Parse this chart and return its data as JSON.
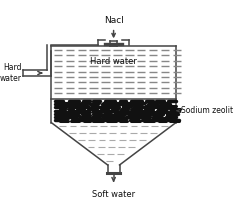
{
  "background_color": "#ffffff",
  "line_color": "#444444",
  "text_color": "#111111",
  "nacl_label": "Nacl",
  "hard_water_label": "Hard water",
  "hard_water_inlet_label": "Hard\nwater",
  "sodium_zeolit_label": "Sodium zeolit",
  "soft_water_label": "Soft water"
}
